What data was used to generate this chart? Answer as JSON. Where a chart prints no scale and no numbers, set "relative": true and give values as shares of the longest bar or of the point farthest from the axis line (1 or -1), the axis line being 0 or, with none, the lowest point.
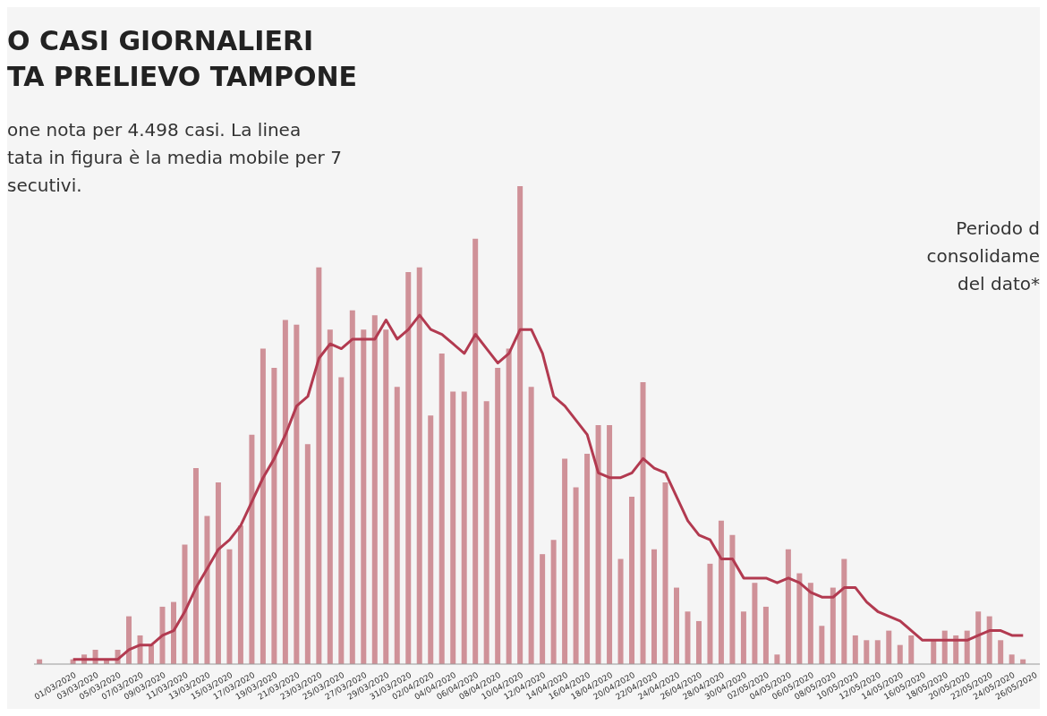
{
  "chart_data": {
    "type": "bar",
    "relative": true,
    "title": "O CASI GIORNALIERI\nTA PRELIEVO TAMPONE",
    "subtitle": "one nota per 4.498  casi. La linea\ntata in figura è la media mobile per 7\nsecutivi.",
    "annotations": [
      "Periodo d\nconsolidame\ndel dato*"
    ],
    "categories": [
      null,
      null,
      null,
      "01/03/2020",
      null,
      "03/03/2020",
      null,
      "05/03/2020",
      null,
      "07/03/2020",
      null,
      "09/03/2020",
      null,
      "11/03/2020",
      null,
      "13/03/2020",
      null,
      "15/03/2020",
      null,
      "17/03/2020",
      null,
      "19/03/2020",
      null,
      "21/03/2020",
      null,
      "23/03/2020",
      null,
      "25/03/2020",
      null,
      "27/03/2020",
      null,
      "29/03/2020",
      null,
      "31/03/2020",
      null,
      "02/04/2020",
      null,
      "04/04/2020",
      null,
      "06/04/2020",
      null,
      "08/04/2020",
      null,
      "10/04/2020",
      null,
      "12/04/2020",
      null,
      "14/04/2020",
      null,
      "16/04/2020",
      null,
      "18/04/2020",
      null,
      "20/04/2020",
      null,
      "22/04/2020",
      null,
      "24/04/2020",
      null,
      "26/04/2020",
      null,
      "28/04/2020",
      null,
      "30/04/2020",
      null,
      "02/05/2020",
      null,
      "04/05/2020",
      null,
      "06/05/2020",
      null,
      "08/05/2020",
      null,
      "10/05/2020",
      null,
      "12/05/2020",
      null,
      "14/05/2020",
      null,
      "16/05/2020",
      null,
      "18/05/2020",
      null,
      "20/05/2020",
      null,
      "22/05/2020",
      null,
      "24/05/2020",
      null,
      "26/05/2020"
    ],
    "series": [
      {
        "color": "#cf9198",
        "values": [
          0.01,
          0,
          0,
          0.01,
          0.02,
          0.03,
          0.01,
          0.03,
          0.1,
          0.06,
          0.04,
          0.12,
          0.13,
          0.25,
          0.41,
          0.31,
          0.38,
          0.24,
          0.29,
          0.48,
          0.66,
          0.62,
          0.72,
          0.71,
          0.46,
          0.83,
          0.7,
          0.6,
          0.74,
          0.7,
          0.73,
          0.7,
          0.58,
          0.82,
          0.83,
          0.52,
          0.65,
          0.57,
          0.57,
          0.89,
          0.55,
          0.62,
          0.66,
          1,
          0.58,
          0.23,
          0.26,
          0.43,
          0.37,
          0.44,
          0.5,
          0.5,
          0.22,
          0.35,
          0.59,
          0.24,
          0.38,
          0.16,
          0.11,
          0.09,
          0.21,
          0.3,
          0.27,
          0.11,
          0.17,
          0.12,
          0.02,
          0.24,
          0.19,
          0.17,
          0.08,
          0.16,
          0.22,
          0.06,
          0.05,
          0.05,
          0.07,
          0.04,
          0.06,
          0,
          0.05,
          0.07,
          0.06,
          0.07,
          0.11,
          0.1,
          0.05,
          0.02,
          0.01,
          null
        ]
      },
      {
        "type": "line",
        "color": "#b23a50",
        "values": [
          null,
          null,
          null,
          0.01,
          0.01,
          0.01,
          0.01,
          0.01,
          0.03,
          0.04,
          0.04,
          0.06,
          0.07,
          0.11,
          0.16,
          0.2,
          0.24,
          0.26,
          0.29,
          0.34,
          0.39,
          0.43,
          0.48,
          0.54,
          0.56,
          0.64,
          0.67,
          0.66,
          0.68,
          0.68,
          0.68,
          0.72,
          0.68,
          0.7,
          0.73,
          0.7,
          0.69,
          0.67,
          0.65,
          0.69,
          0.66,
          0.63,
          0.65,
          0.7,
          0.7,
          0.65,
          0.56,
          0.54,
          0.51,
          0.48,
          0.4,
          0.39,
          0.39,
          0.4,
          0.43,
          0.41,
          0.4,
          0.35,
          0.3,
          0.27,
          0.26,
          0.22,
          0.22,
          0.18,
          0.18,
          0.18,
          0.17,
          0.18,
          0.17,
          0.15,
          0.14,
          0.14,
          0.16,
          0.16,
          0.13,
          0.11,
          0.1,
          0.09,
          0.07,
          0.05,
          0.05,
          0.05,
          0.05,
          0.05,
          0.06,
          0.07,
          0.07,
          0.06,
          0.06,
          null
        ]
      }
    ]
  }
}
